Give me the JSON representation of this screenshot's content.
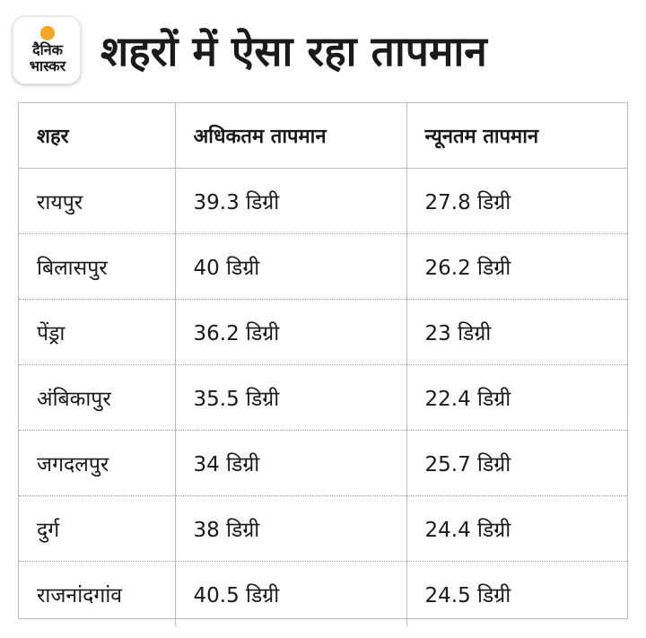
{
  "logo": {
    "line1": "दैनिक",
    "line2": "भास्कर",
    "accent_color": "#f5a623"
  },
  "title": "शहरों में ऐसा रहा तापमान",
  "table": {
    "headers": [
      "शहर",
      "अधिकतम तापमान",
      "न्यूनतम तापमान"
    ],
    "rows": [
      [
        "रायपुर",
        "39.3 डिग्री",
        "27.8 डिग्री"
      ],
      [
        "बिलासपुर",
        "40 डिग्री",
        "26.2 डिग्री"
      ],
      [
        "पेंड्रा",
        "36.2  डिग्री",
        "23 डिग्री"
      ],
      [
        "अंबिकापुर",
        "35.5 डिग्री",
        "22.4 डिग्री"
      ],
      [
        "जगदलपुर",
        "34 डिग्री",
        "25.7 डिग्री"
      ],
      [
        "दुर्ग",
        "38 डिग्री",
        "24.4 डिग्री"
      ],
      [
        "राजनांदगांव",
        "40.5 डिग्री",
        "24.5 डिग्री"
      ]
    ]
  }
}
